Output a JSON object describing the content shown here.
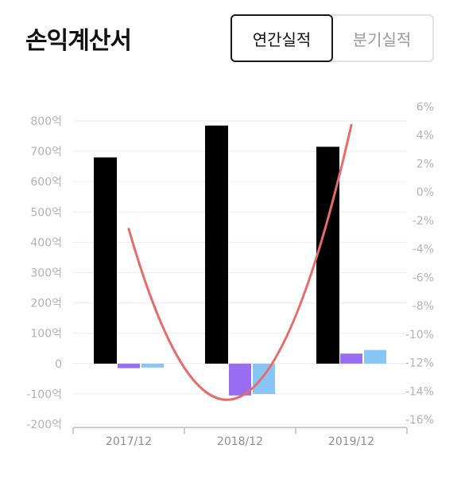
{
  "header": {
    "title": "손익계산서",
    "tabs": [
      {
        "label": "연간실적",
        "active": true
      },
      {
        "label": "분기실적",
        "active": false
      }
    ]
  },
  "chart_data": {
    "type": "bar",
    "categories": [
      "2017/12",
      "2018/12",
      "2019/12"
    ],
    "series": [
      {
        "values": [
          680,
          785,
          715
        ],
        "color": "#000000",
        "axis": "left"
      },
      {
        "values": [
          -15,
          -105,
          33
        ],
        "color": "#9a6cf2",
        "axis": "left"
      },
      {
        "values": [
          -13,
          -100,
          45
        ],
        "color": "#86c5f4",
        "axis": "left"
      },
      {
        "type": "line",
        "values": [
          -2.6,
          -14.4,
          4.7
        ],
        "color": "#e86a6a",
        "axis": "right"
      }
    ],
    "y_left": {
      "min": -200,
      "max": 800,
      "ticks": [
        {
          "v": 800,
          "label": "800억"
        },
        {
          "v": 700,
          "label": "700억"
        },
        {
          "v": 600,
          "label": "600억"
        },
        {
          "v": 500,
          "label": "500억"
        },
        {
          "v": 400,
          "label": "400억"
        },
        {
          "v": 300,
          "label": "300억"
        },
        {
          "v": 200,
          "label": "200억"
        },
        {
          "v": 100,
          "label": "100억"
        },
        {
          "v": 0,
          "label": "0"
        },
        {
          "v": -100,
          "label": "-100억"
        },
        {
          "v": -200,
          "label": "-200억"
        }
      ]
    },
    "y_right": {
      "min": -16,
      "max": 6,
      "ticks": [
        {
          "v": 6,
          "label": "6%"
        },
        {
          "v": 4,
          "label": "4%"
        },
        {
          "v": 2,
          "label": "2%"
        },
        {
          "v": 0,
          "label": "0%"
        },
        {
          "v": -2,
          "label": "-2%"
        },
        {
          "v": -4,
          "label": "-4%"
        },
        {
          "v": -6,
          "label": "-6%"
        },
        {
          "v": -8,
          "label": "-8%"
        },
        {
          "v": -10,
          "label": "-10%"
        },
        {
          "v": -12,
          "label": "-12%"
        },
        {
          "v": -14,
          "label": "-14%"
        },
        {
          "v": -16,
          "label": "-16%"
        }
      ]
    },
    "grid": true,
    "colors": {
      "grid": "#ececec",
      "tick_text": "#b3b3b3",
      "axis": "#bdbdbd"
    }
  }
}
